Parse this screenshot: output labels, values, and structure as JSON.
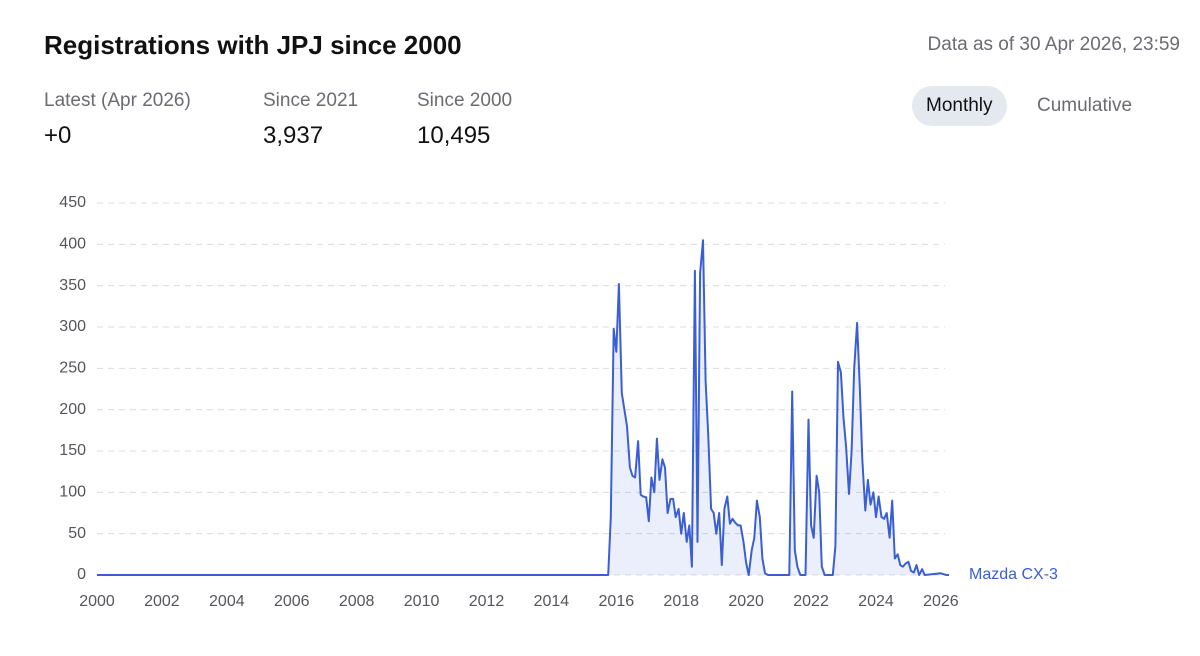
{
  "header": {
    "title": "Registrations with JPJ since 2000",
    "timestamp": "Data as of 30 Apr 2026, 23:59"
  },
  "stats": [
    {
      "label": "Latest (Apr 2026)",
      "value": "+0"
    },
    {
      "label": "Since 2021",
      "value": "3,937"
    },
    {
      "label": "Since 2000",
      "value": "10,495"
    }
  ],
  "toggle": {
    "options": [
      "Monthly",
      "Cumulative"
    ],
    "active": "Monthly"
  },
  "chart_data": {
    "type": "area",
    "xlim": [
      2000,
      2026.25
    ],
    "xticks": [
      2000,
      2002,
      2004,
      2006,
      2008,
      2010,
      2012,
      2014,
      2016,
      2018,
      2020,
      2022,
      2024,
      2026
    ],
    "ylim": [
      0,
      450
    ],
    "yticks": [
      0,
      50,
      100,
      150,
      200,
      250,
      300,
      350,
      400,
      450
    ],
    "grid": true,
    "series": [
      {
        "name": "Mazda CX-3",
        "color": "#3a5fd4",
        "x": [
          2000,
          2015.75,
          2015.83,
          2015.92,
          2016,
          2016.08,
          2016.17,
          2016.25,
          2016.33,
          2016.42,
          2016.5,
          2016.58,
          2016.67,
          2016.75,
          2016.83,
          2016.92,
          2017,
          2017.08,
          2017.17,
          2017.25,
          2017.33,
          2017.42,
          2017.5,
          2017.58,
          2017.67,
          2017.75,
          2017.83,
          2017.92,
          2018,
          2018.08,
          2018.17,
          2018.25,
          2018.33,
          2018.42,
          2018.5,
          2018.58,
          2018.67,
          2018.75,
          2018.83,
          2018.92,
          2019,
          2019.08,
          2019.17,
          2019.25,
          2019.33,
          2019.42,
          2019.5,
          2019.58,
          2019.67,
          2019.75,
          2019.83,
          2019.92,
          2020,
          2020.08,
          2020.17,
          2020.25,
          2020.33,
          2020.42,
          2020.5,
          2020.58,
          2020.67,
          2021.33,
          2021.42,
          2021.5,
          2021.58,
          2021.67,
          2021.83,
          2021.92,
          2022,
          2022.08,
          2022.17,
          2022.25,
          2022.33,
          2022.42,
          2022.67,
          2022.75,
          2022.83,
          2022.92,
          2023,
          2023.08,
          2023.17,
          2023.25,
          2023.33,
          2023.42,
          2023.5,
          2023.58,
          2023.67,
          2023.75,
          2023.83,
          2023.92,
          2024,
          2024.08,
          2024.17,
          2024.25,
          2024.33,
          2024.42,
          2024.5,
          2024.58,
          2024.67,
          2024.75,
          2024.83,
          2024.92,
          2025,
          2025.08,
          2025.17,
          2025.25,
          2025.33,
          2025.42,
          2025.5,
          2026,
          2026.08,
          2026.17,
          2026.25
        ],
        "values": [
          0,
          0,
          70,
          298,
          270,
          352,
          220,
          200,
          180,
          130,
          120,
          118,
          162,
          97,
          95,
          94,
          65,
          118,
          100,
          165,
          115,
          140,
          130,
          75,
          92,
          92,
          70,
          80,
          50,
          75,
          40,
          60,
          10,
          368,
          40,
          365,
          405,
          235,
          170,
          80,
          75,
          50,
          75,
          12,
          80,
          95,
          62,
          68,
          63,
          60,
          60,
          40,
          15,
          0,
          30,
          45,
          90,
          70,
          20,
          2,
          0,
          0,
          222,
          30,
          10,
          0,
          0,
          188,
          60,
          45,
          120,
          100,
          10,
          0,
          0,
          35,
          258,
          245,
          190,
          155,
          98,
          150,
          250,
          305,
          230,
          140,
          78,
          115,
          85,
          100,
          70,
          95,
          70,
          68,
          75,
          45,
          90,
          20,
          25,
          12,
          10,
          14,
          16,
          5,
          3,
          12,
          0,
          7,
          0,
          2,
          1,
          0,
          0
        ]
      }
    ]
  }
}
